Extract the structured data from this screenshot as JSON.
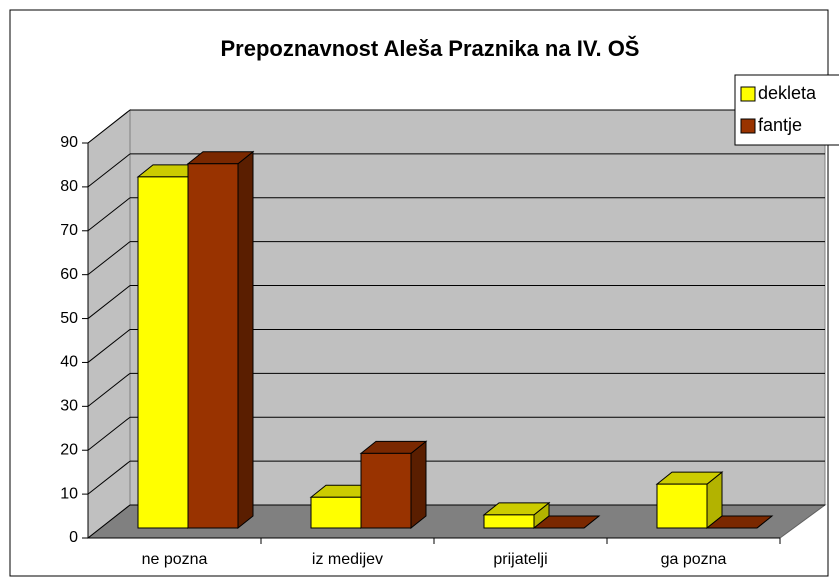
{
  "chart_data": {
    "type": "bar3d",
    "title": "Prepoznavnost Aleša Praznika na IV. OŠ",
    "categories": [
      "ne pozna",
      "iz medijev",
      "prijatelji",
      "ga pozna"
    ],
    "series": [
      {
        "name": "dekleta",
        "color": "#ffff00",
        "values": [
          80,
          7,
          3,
          10
        ]
      },
      {
        "name": "fantje",
        "color": "#993300",
        "values": [
          83,
          17,
          0,
          0
        ]
      }
    ],
    "ylim": [
      0,
      90
    ],
    "yticks": [
      0,
      10,
      20,
      30,
      40,
      50,
      60,
      70,
      80,
      90
    ],
    "grid": true,
    "legend": "right"
  }
}
